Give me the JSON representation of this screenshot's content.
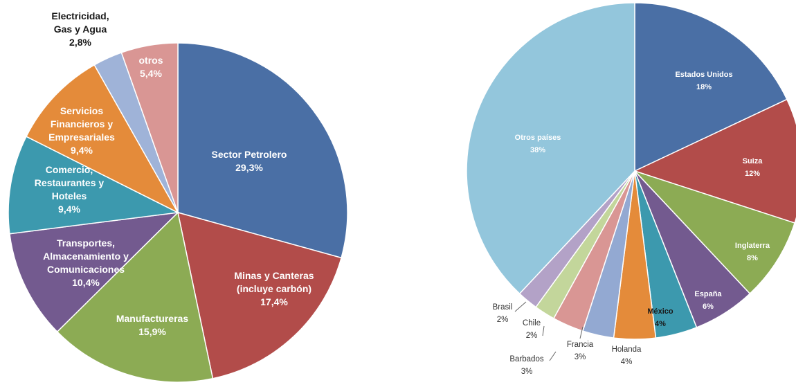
{
  "chart_data": [
    {
      "type": "pie",
      "slices": [
        {
          "label_lines": [
            "Sector Petrolero",
            "29,3%"
          ],
          "value": 29.3,
          "color": "#4a6fa5",
          "text_color": "#ffffff"
        },
        {
          "label_lines": [
            "Minas y Canteras",
            "(incluye carbón)",
            "17,4%"
          ],
          "value": 17.4,
          "color": "#b24c4a",
          "text_color": "#ffffff"
        },
        {
          "label_lines": [
            "Manufactureras",
            "15,9%"
          ],
          "value": 15.9,
          "color": "#8cab54",
          "text_color": "#ffffff"
        },
        {
          "label_lines": [
            "Transportes,",
            "Almacenamiento y",
            "Comunicaciones",
            "10,4%"
          ],
          "value": 10.4,
          "color": "#735a8f",
          "text_color": "#ffffff"
        },
        {
          "label_lines": [
            "Comercio,",
            "Restaurantes y",
            "Hoteles",
            "9,4%"
          ],
          "value": 9.4,
          "color": "#3c99ae",
          "text_color": "#ffffff"
        },
        {
          "label_lines": [
            "Servicios",
            "Financieros y",
            "Empresariales",
            "9,4%"
          ],
          "value": 9.4,
          "color": "#e48b3a",
          "text_color": "#ffffff"
        },
        {
          "label_lines": [
            "Electricidad,",
            "Gas y Agua",
            "2,8%"
          ],
          "value": 2.8,
          "color": "#9fb3d8",
          "text_color": "#1a1a1a"
        },
        {
          "label_lines": [
            "otros",
            "5,4%"
          ],
          "value": 5.4,
          "color": "#d99694",
          "text_color": "#ffffff"
        }
      ]
    },
    {
      "type": "pie",
      "slices": [
        {
          "label_lines": [
            "Estados Unidos",
            "18%"
          ],
          "value": 18,
          "color": "#4a6fa5",
          "text_color": "#ffffff"
        },
        {
          "label_lines": [
            "Suiza",
            "12%"
          ],
          "value": 12,
          "color": "#b24c4a",
          "text_color": "#ffffff"
        },
        {
          "label_lines": [
            "Inglaterra",
            "8%"
          ],
          "value": 8,
          "color": "#8cab54",
          "text_color": "#ffffff"
        },
        {
          "label_lines": [
            "España",
            "6%"
          ],
          "value": 6,
          "color": "#735a8f",
          "text_color": "#ffffff"
        },
        {
          "label_lines": [
            "México",
            "4%"
          ],
          "value": 4,
          "color": "#3c99ae",
          "text_color": "#1a1a1a"
        },
        {
          "label_lines": [
            "Holanda",
            "4%"
          ],
          "value": 4,
          "color": "#e48b3a",
          "text_color": "#333333"
        },
        {
          "label_lines": [
            "Francia",
            "3%"
          ],
          "value": 3,
          "color": "#93a9d2",
          "text_color": "#333333"
        },
        {
          "label_lines": [
            "Barbados",
            "3%"
          ],
          "value": 3,
          "color": "#d99694",
          "text_color": "#333333"
        },
        {
          "label_lines": [
            "Chile",
            "2%"
          ],
          "value": 2,
          "color": "#c3d69b",
          "text_color": "#333333"
        },
        {
          "label_lines": [
            "Brasil",
            "2%"
          ],
          "value": 2,
          "color": "#b3a2c7",
          "text_color": "#333333"
        },
        {
          "label_lines": [
            "Otros países",
            "38%"
          ],
          "value": 38,
          "color": "#93c6dc",
          "text_color": "#ffffff"
        }
      ]
    }
  ]
}
